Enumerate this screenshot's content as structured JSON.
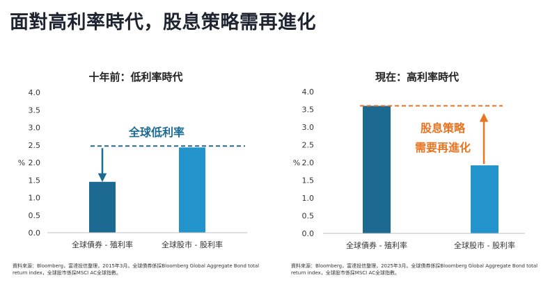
{
  "title": "面對高利率時代，股息策略需再進化",
  "colors": {
    "dark_blue": "#1c6a92",
    "light_blue": "#2394cb",
    "orange": "#e9731f",
    "axis_text": "#333333"
  },
  "chart_data": [
    {
      "type": "bar",
      "title": "十年前：低利率時代",
      "categories": [
        "全球債券 - 殖利率",
        "全球股市 - 股利率"
      ],
      "values": [
        1.45,
        2.43
      ],
      "ylabel": "%",
      "ylim": [
        0,
        4.0
      ],
      "yticks": [
        "4.0",
        "3.5",
        "3.0",
        "2.5",
        "2.0",
        "1.5",
        "1.0",
        "0.5",
        "0.0"
      ],
      "reference_line": 2.47,
      "annotation": "全球低利率",
      "source": "資料來源：Bloomberg，富達投信整理，2015年3月。全球債券係採Bloomberg Global Aggregate Bond total return index，全球股市係採MSCI AC全球指數。"
    },
    {
      "type": "bar",
      "title": "現在：高利率時代",
      "categories": [
        "全球債券 - 殖利率",
        "全球股市 - 股利率"
      ],
      "values": [
        3.6,
        1.92
      ],
      "ylabel": "%",
      "ylim": [
        0,
        4.0
      ],
      "yticks": [
        "4.0",
        "3.5",
        "3.0",
        "2.5",
        "2.0",
        "1.5",
        "1.0",
        "0.5",
        "0.0"
      ],
      "reference_line": 3.6,
      "annotation_lines": [
        "股息策略",
        "需要再進化"
      ],
      "source": "資料來源：Bloomberg，富達投信整理，2025年3月。全球債券係採Bloomberg Global Aggregate Bond total return index，全球股市係採MSCI AC全球指數。"
    }
  ]
}
